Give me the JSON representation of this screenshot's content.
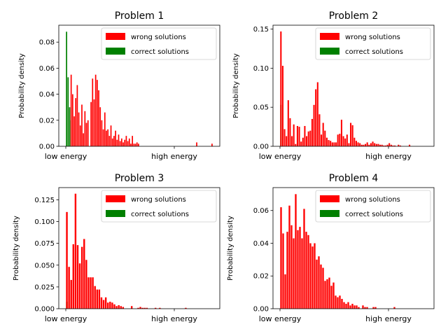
{
  "chart_data": [
    {
      "type": "bar",
      "title": "Problem 1",
      "ylabel": "Probability density",
      "xlabel": "",
      "x_tick_labels": [
        "low energy",
        "high energy"
      ],
      "ylim": [
        0,
        0.093
      ],
      "yticks": [
        0.0,
        0.02,
        0.04,
        0.06,
        0.08
      ],
      "ytick_labels": [
        "0.00",
        "0.02",
        "0.04",
        "0.06",
        "0.08"
      ],
      "legend_position": "top-right",
      "legend": [
        {
          "label": "wrong solutions",
          "color": "#ff0000"
        },
        {
          "label": "correct solutions",
          "color": "#008000"
        }
      ],
      "series": [
        {
          "name": "correct solutions",
          "color": "#008000",
          "values": [
            0.088,
            0.053,
            0.03,
            0.02,
            0.0,
            0.0,
            0.0,
            0.0,
            0.0,
            0.0,
            0.0,
            0.0,
            0.0,
            0.0,
            0.0,
            0.0,
            0.0,
            0.0,
            0.0,
            0.0,
            0.0,
            0.0,
            0.0,
            0.0,
            0.0,
            0.0,
            0.0,
            0.0,
            0.0,
            0.0,
            0.0,
            0.0,
            0.0,
            0.0,
            0.0,
            0.0,
            0.0,
            0.0,
            0.0,
            0.0,
            0.0,
            0.0,
            0.0,
            0.0,
            0.0,
            0.0,
            0.0,
            0.0,
            0.0,
            0.0,
            0.0,
            0.0,
            0.0,
            0.0,
            0.0,
            0.0,
            0.0,
            0.0,
            0.0,
            0.0,
            0.0,
            0.0,
            0.0,
            0.0,
            0.0,
            0.0,
            0.0,
            0.0,
            0.0,
            0.0,
            0.0,
            0.0,
            0.0,
            0.0,
            0.0,
            0.0,
            0.0,
            0.0,
            0.0,
            0.0,
            0.0,
            0.0,
            0.0,
            0.0,
            0.0,
            0.0,
            0.0,
            0.0,
            0.0,
            0.0,
            0.0,
            0.0,
            0.0,
            0.0,
            0.0,
            0.0
          ]
        },
        {
          "name": "wrong solutions",
          "color": "#ff0000",
          "values": [
            0.0,
            0.0,
            0.0,
            0.055,
            0.04,
            0.023,
            0.037,
            0.047,
            0.026,
            0.016,
            0.032,
            0.01,
            0.027,
            0.018,
            0.02,
            0.0,
            0.034,
            0.052,
            0.036,
            0.055,
            0.051,
            0.043,
            0.03,
            0.02,
            0.013,
            0.026,
            0.012,
            0.013,
            0.008,
            0.016,
            0.006,
            0.008,
            0.012,
            0.005,
            0.009,
            0.004,
            0.006,
            0.003,
            0.005,
            0.008,
            0.004,
            0.006,
            0.002,
            0.008,
            0.002,
            0.002,
            0.003,
            0.002,
            0.0,
            0.0,
            0.0,
            0.0,
            0.0,
            0.0,
            0.0,
            0.0,
            0.0,
            0.0,
            0.0,
            0.0,
            0.0,
            0.0,
            0.0,
            0.0,
            0.0,
            0.0,
            0.0,
            0.0,
            0.0,
            0.0,
            0.0,
            0.0,
            0.0,
            0.0,
            0.0,
            0.0,
            0.0,
            0.0,
            0.0,
            0.0,
            0.0,
            0.0,
            0.0,
            0.0,
            0.0,
            0.003,
            0.0,
            0.0,
            0.0,
            0.0,
            0.0,
            0.0,
            0.0,
            0.0,
            0.0,
            0.002
          ]
        }
      ]
    },
    {
      "type": "bar",
      "title": "Problem 2",
      "ylabel": "Probability density",
      "xlabel": "",
      "x_tick_labels": [
        "low energy",
        "high energy"
      ],
      "ylim": [
        0,
        0.155
      ],
      "yticks": [
        0.0,
        0.05,
        0.1,
        0.15
      ],
      "ytick_labels": [
        "0.00",
        "0.05",
        "0.10",
        "0.15"
      ],
      "legend_position": "top-right",
      "legend": [
        {
          "label": "wrong solutions",
          "color": "#ff0000"
        },
        {
          "label": "correct solutions",
          "color": "#008000"
        }
      ],
      "series": [
        {
          "name": "correct solutions",
          "color": "#008000",
          "values": [
            0.053,
            0.0,
            0.0,
            0.0,
            0.0,
            0.0,
            0.0,
            0.0,
            0.0,
            0.0,
            0.0,
            0.0,
            0.0,
            0.0,
            0.0,
            0.0,
            0.0,
            0.0,
            0.0,
            0.0,
            0.0,
            0.0,
            0.0,
            0.0,
            0.0,
            0.0,
            0.0,
            0.0,
            0.0,
            0.0,
            0.0,
            0.0,
            0.0,
            0.0,
            0.0,
            0.0,
            0.0,
            0.0,
            0.0,
            0.0,
            0.0,
            0.0,
            0.0,
            0.0,
            0.0,
            0.0,
            0.0,
            0.0,
            0.0,
            0.0,
            0.0,
            0.0,
            0.0,
            0.0,
            0.0,
            0.0,
            0.0,
            0.0,
            0.0,
            0.0,
            0.0,
            0.0,
            0.0,
            0.0,
            0.0,
            0.0,
            0.0,
            0.0,
            0.0,
            0.0,
            0.0,
            0.0,
            0.0,
            0.0,
            0.0,
            0.0,
            0.0,
            0.0,
            0.0,
            0.0
          ]
        },
        {
          "name": "wrong solutions",
          "color": "#ff0000",
          "values": [
            0.147,
            0.103,
            0.022,
            0.013,
            0.059,
            0.036,
            0.013,
            0.028,
            0.003,
            0.026,
            0.025,
            0.006,
            0.011,
            0.026,
            0.013,
            0.019,
            0.02,
            0.035,
            0.053,
            0.073,
            0.082,
            0.041,
            0.015,
            0.03,
            0.02,
            0.011,
            0.008,
            0.007,
            0.005,
            0.005,
            0.005,
            0.015,
            0.016,
            0.034,
            0.013,
            0.01,
            0.015,
            0.004,
            0.03,
            0.027,
            0.011,
            0.007,
            0.005,
            0.004,
            0.002,
            0.002,
            0.003,
            0.005,
            0.002,
            0.004,
            0.006,
            0.004,
            0.003,
            0.003,
            0.002,
            0.002,
            0.001,
            0.001,
            0.002,
            0.004,
            0.002,
            0.001,
            0.001,
            0.0,
            0.002,
            0.001,
            0.0,
            0.0,
            0.0,
            0.0,
            0.002,
            0.0,
            0.0,
            0.0,
            0.0,
            0.0,
            0.0,
            0.0,
            0.0,
            0.0
          ]
        }
      ]
    },
    {
      "type": "bar",
      "title": "Problem 3",
      "ylabel": "Probability density",
      "xlabel": "",
      "x_tick_labels": [
        "low energy",
        "high energy"
      ],
      "ylim": [
        0,
        0.139
      ],
      "yticks": [
        0.0,
        0.025,
        0.05,
        0.075,
        0.1,
        0.125
      ],
      "ytick_labels": [
        "0.000",
        "0.025",
        "0.050",
        "0.075",
        "0.100",
        "0.125"
      ],
      "legend_position": "top-right",
      "legend": [
        {
          "label": "wrong solutions",
          "color": "#ff0000"
        },
        {
          "label": "correct solutions",
          "color": "#008000"
        }
      ],
      "series": [
        {
          "name": "correct solutions",
          "color": "#008000",
          "values": [
            0.008,
            0.0,
            0.0,
            0.0,
            0.0,
            0.0,
            0.0,
            0.0,
            0.0,
            0.0,
            0.0,
            0.0,
            0.0,
            0.0,
            0.0,
            0.0,
            0.0,
            0.0,
            0.0,
            0.0,
            0.0,
            0.0,
            0.0,
            0.0,
            0.0,
            0.0,
            0.0,
            0.0,
            0.0,
            0.0,
            0.0,
            0.0,
            0.0,
            0.0,
            0.0,
            0.0,
            0.0,
            0.0,
            0.0,
            0.0,
            0.0,
            0.0,
            0.0,
            0.0,
            0.0,
            0.0,
            0.0,
            0.0,
            0.0,
            0.0,
            0.0,
            0.0,
            0.0,
            0.0,
            0.0,
            0.0,
            0.0,
            0.0,
            0.0,
            0.0,
            0.0,
            0.0,
            0.0,
            0.0,
            0.0,
            0.0,
            0.0,
            0.0
          ]
        },
        {
          "name": "wrong solutions",
          "color": "#ff0000",
          "values": [
            0.111,
            0.048,
            0.033,
            0.074,
            0.132,
            0.073,
            0.052,
            0.071,
            0.08,
            0.056,
            0.036,
            0.036,
            0.036,
            0.026,
            0.022,
            0.022,
            0.013,
            0.01,
            0.013,
            0.007,
            0.008,
            0.007,
            0.005,
            0.003,
            0.004,
            0.003,
            0.002,
            0.0,
            0.0,
            0.0,
            0.003,
            0.0,
            0.0,
            0.001,
            0.002,
            0.001,
            0.001,
            0.001,
            0.0,
            0.0,
            0.0,
            0.001,
            0.0,
            0.001,
            0.0,
            0.0,
            0.0,
            0.0,
            0.0,
            0.0,
            0.0,
            0.0,
            0.0,
            0.0,
            0.0,
            0.001,
            0.0,
            0.0,
            0.0,
            0.0,
            0.0,
            0.0,
            0.0,
            0.0,
            0.0,
            0.0,
            0.0,
            0.0
          ]
        }
      ]
    },
    {
      "type": "bar",
      "title": "Problem 4",
      "ylabel": "Probability density",
      "xlabel": "",
      "x_tick_labels": [
        "low energy",
        "high energy"
      ],
      "ylim": [
        0,
        0.074
      ],
      "yticks": [
        0.0,
        0.02,
        0.04,
        0.06
      ],
      "ytick_labels": [
        "0.00",
        "0.02",
        "0.04",
        "0.06"
      ],
      "legend_position": "top-right",
      "legend": [
        {
          "label": "wrong solutions",
          "color": "#ff0000"
        },
        {
          "label": "correct solutions",
          "color": "#008000"
        }
      ],
      "series": [
        {
          "name": "correct solutions",
          "color": "#008000",
          "values": [
            0.0,
            0.0,
            0.0,
            0.0,
            0.0,
            0.0,
            0.0,
            0.0,
            0.0,
            0.0,
            0.0,
            0.0,
            0.0,
            0.0,
            0.0,
            0.0,
            0.0,
            0.0,
            0.0,
            0.0,
            0.0,
            0.0,
            0.0,
            0.0,
            0.0,
            0.0,
            0.0,
            0.0,
            0.0,
            0.0,
            0.0,
            0.0,
            0.0,
            0.0,
            0.0,
            0.0,
            0.0,
            0.0,
            0.0,
            0.0,
            0.0,
            0.0,
            0.0,
            0.0,
            0.0,
            0.0,
            0.0,
            0.0,
            0.0,
            0.0,
            0.0,
            0.0,
            0.0,
            0.0,
            0.0,
            0.0,
            0.0,
            0.0,
            0.0,
            0.0,
            0.0,
            0.0,
            0.0,
            0.0,
            0.0,
            0.0,
            0.0,
            0.0,
            0.0,
            0.0
          ]
        },
        {
          "name": "wrong solutions",
          "color": "#ff0000",
          "values": [
            0.062,
            0.046,
            0.021,
            0.047,
            0.063,
            0.051,
            0.043,
            0.07,
            0.048,
            0.05,
            0.043,
            0.061,
            0.047,
            0.045,
            0.04,
            0.038,
            0.04,
            0.03,
            0.032,
            0.027,
            0.025,
            0.017,
            0.018,
            0.019,
            0.014,
            0.016,
            0.008,
            0.007,
            0.008,
            0.006,
            0.004,
            0.003,
            0.004,
            0.002,
            0.003,
            0.002,
            0.002,
            0.001,
            0.0,
            0.002,
            0.001,
            0.001,
            0.0,
            0.0,
            0.001,
            0.001,
            0.0,
            0.0,
            0.0,
            0.0,
            0.0,
            0.0,
            0.0,
            0.0,
            0.001,
            0.0,
            0.0,
            0.0,
            0.0,
            0.0,
            0.0,
            0.0,
            0.0,
            0.0,
            0.0,
            0.0,
            0.0,
            0.0
          ]
        }
      ]
    }
  ]
}
